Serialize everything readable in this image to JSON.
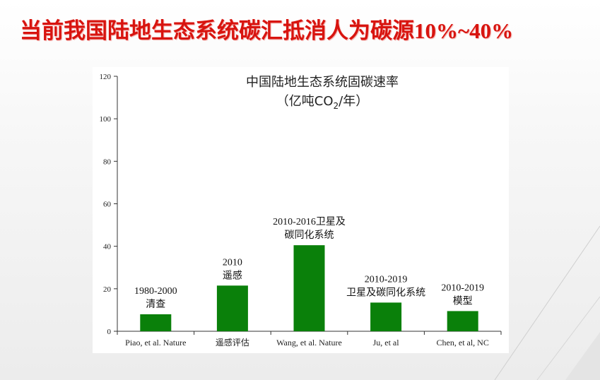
{
  "slide": {
    "title_text": "当前我国陆地生态系统碳汇抵消人为碳源",
    "title_numbers": "10%~40%"
  },
  "colors": {
    "title": "#d8140f",
    "bar": "#0a800a",
    "axis": "#333333"
  },
  "chart_data": {
    "type": "bar",
    "title": "中国陆地生态系统固碳速率",
    "subtitle_open": "（亿吨CO",
    "subtitle_sub": "2",
    "subtitle_close": "/年）",
    "categories": [
      "Piao, et al. Nature",
      "遥感评估",
      "Wang, et al. Nature",
      "Ju, et al",
      "Chen, et al, NC"
    ],
    "values": [
      8,
      21.5,
      40.5,
      13.5,
      9.5
    ],
    "annotations": [
      [
        "1980-2000",
        "清查"
      ],
      [
        "2010",
        "遥感"
      ],
      [
        "2010-2016卫星及",
        "碳同化系统"
      ],
      [
        "2010-2019",
        "卫星及碳同化系统"
      ],
      [
        "2010-2019",
        "模型"
      ]
    ],
    "ylim": [
      0,
      120
    ],
    "yticks": [
      0,
      20,
      40,
      60,
      80,
      100,
      120
    ],
    "grid": false,
    "legend": "none"
  }
}
